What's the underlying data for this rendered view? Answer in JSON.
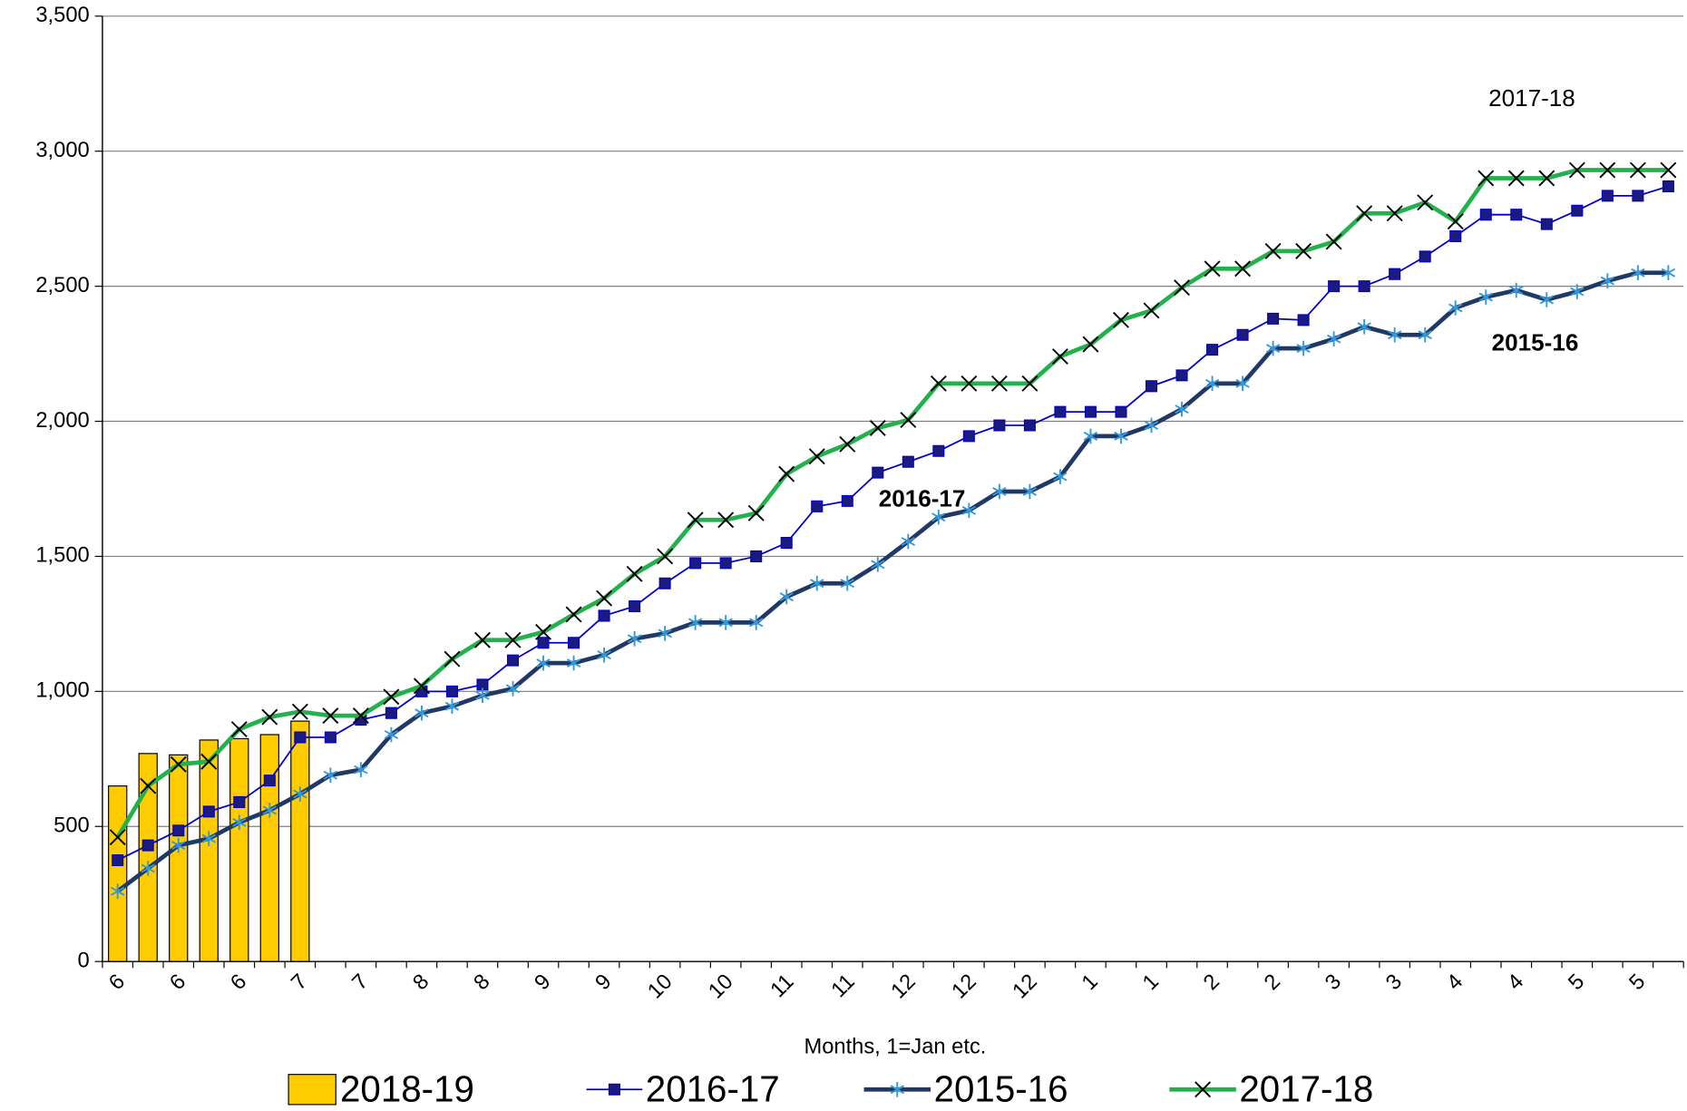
{
  "chart_data": {
    "type": "combo",
    "x_label": "Months, 1=Jan etc.",
    "categories": [
      "6",
      null,
      "6",
      null,
      "6",
      null,
      "7",
      null,
      "7",
      null,
      "8",
      null,
      "8",
      null,
      "9",
      null,
      "9",
      null,
      "10",
      null,
      "10",
      null,
      "11",
      null,
      "11",
      null,
      "12",
      null,
      "12",
      null,
      "12",
      null,
      "1",
      null,
      "1",
      null,
      "2",
      null,
      "2",
      null,
      "3",
      null,
      "3",
      null,
      "4",
      null,
      "4",
      null,
      "5",
      null,
      "5",
      null
    ],
    "ylim": [
      0,
      3500
    ],
    "yticks": [
      0,
      500,
      {
        "value": 1000,
        "label": "1,000"
      },
      {
        "value": 1500,
        "label": "1,500"
      },
      {
        "value": 2000,
        "label": "2,000"
      },
      {
        "value": 2500,
        "label": "2,500"
      },
      {
        "value": 3000,
        "label": "3,000"
      },
      {
        "value": 3500,
        "label": "3,500"
      }
    ],
    "grid": true,
    "legend": "bottom",
    "series": [
      {
        "name": "2018-19",
        "type": "bar",
        "color": "#ffcc00",
        "values": [
          650,
          770,
          765,
          820,
          825,
          840,
          890,
          null,
          null,
          null,
          null,
          null,
          null,
          null,
          null,
          null,
          null,
          null,
          null,
          null,
          null,
          null,
          null,
          null,
          null,
          null,
          null,
          null,
          null,
          null,
          null,
          null,
          null,
          null,
          null,
          null,
          null,
          null,
          null,
          null,
          null,
          null,
          null,
          null,
          null,
          null,
          null,
          null,
          null,
          null,
          null,
          null
        ]
      },
      {
        "name": "2016-17",
        "type": "line",
        "color": "#0000cc",
        "marker": "square",
        "marker_color": "#1a1a80",
        "values": [
          375,
          430,
          485,
          555,
          590,
          670,
          830,
          830,
          895,
          920,
          1000,
          1000,
          1025,
          1115,
          1180,
          1180,
          1280,
          1315,
          1400,
          1475,
          1475,
          1500,
          1550,
          1685,
          1705,
          1810,
          1850,
          1890,
          1945,
          1985,
          1985,
          2035,
          2035,
          2035,
          2130,
          2170,
          2265,
          2320,
          2380,
          2375,
          2500,
          2500,
          2545,
          2610,
          2685,
          2765,
          2765,
          2730,
          2780,
          2835,
          2835,
          2870
        ]
      },
      {
        "name": "2015-16",
        "type": "line",
        "color": "#1f3864",
        "marker": "asterisk",
        "marker_color": "#3399dd",
        "values": [
          260,
          345,
          430,
          455,
          515,
          560,
          620,
          690,
          710,
          840,
          920,
          945,
          985,
          1010,
          1105,
          1105,
          1135,
          1195,
          1215,
          1255,
          1255,
          1255,
          1350,
          1400,
          1400,
          1470,
          1555,
          1645,
          1670,
          1740,
          1740,
          1795,
          1945,
          1945,
          1985,
          2045,
          2140,
          2140,
          2270,
          2270,
          2305,
          2350,
          2320,
          2320,
          2420,
          2460,
          2485,
          2450,
          2480,
          2520,
          2550,
          2550
        ]
      },
      {
        "name": "2017-18",
        "type": "line",
        "color": "#22b14c",
        "marker": "x",
        "marker_color": "#000000",
        "values": [
          460,
          650,
          730,
          740,
          860,
          905,
          925,
          910,
          910,
          980,
          1020,
          1120,
          1190,
          1190,
          1220,
          1285,
          1345,
          1435,
          1500,
          1635,
          1635,
          1660,
          1805,
          1870,
          1915,
          1975,
          2005,
          2140,
          2140,
          2140,
          2140,
          2240,
          2285,
          2375,
          2410,
          2495,
          2565,
          2565,
          2630,
          2630,
          2665,
          2770,
          2770,
          2810,
          2740,
          2900,
          2900,
          2900,
          2930,
          2930,
          2930,
          2930
        ]
      }
    ],
    "annotations": [
      "2017-18",
      "2016-17",
      "2015-16"
    ]
  }
}
